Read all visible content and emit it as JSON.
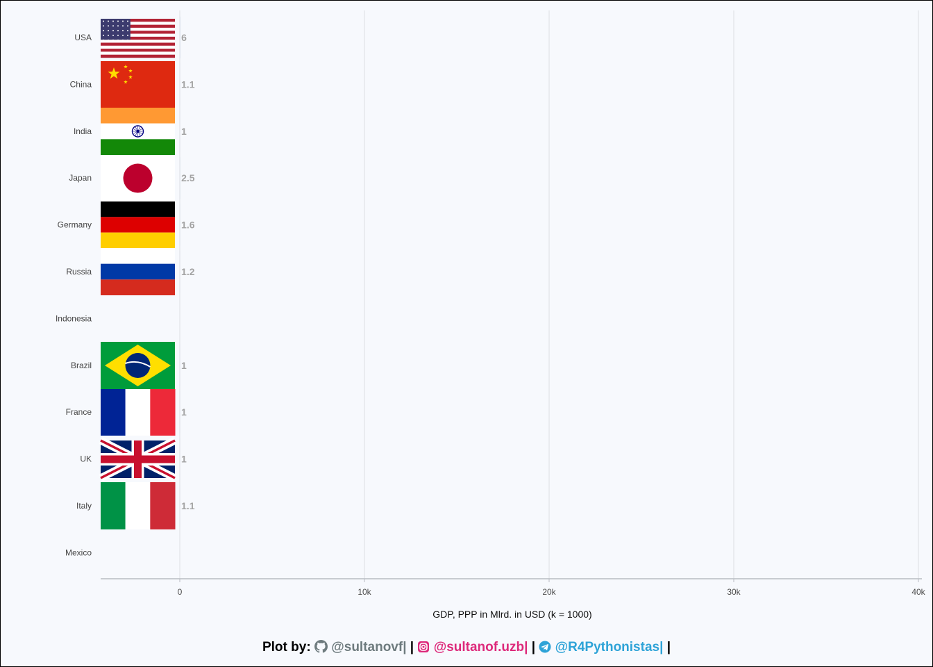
{
  "chart_data": {
    "type": "bar",
    "orientation": "horizontal",
    "categories": [
      "USA",
      "China",
      "India",
      "Japan",
      "Germany",
      "Russia",
      "Indonesia",
      "Brazil",
      "France",
      "UK",
      "Italy",
      "Mexico"
    ],
    "values": [
      6,
      1.1,
      1,
      2.5,
      1.6,
      1.2,
      null,
      1,
      1,
      1,
      1.1,
      null
    ],
    "value_labels": [
      "6",
      "1.1",
      "1",
      "2.5",
      "1.6",
      "1.2",
      "",
      "1",
      "1",
      "1",
      "1.1",
      ""
    ],
    "flags": [
      "usa-flag",
      "china-flag",
      "india-flag",
      "japan-flag",
      "germany-flag",
      "russia-flag",
      null,
      "brazil-flag",
      "france-flag",
      "uk-flag",
      "italy-flag",
      null
    ],
    "xlabel": "GDP, PPP in Mlrd. in USD (k = 1000)",
    "xlim": [
      0,
      40000
    ],
    "xticks": [
      0,
      10000,
      20000,
      30000,
      40000
    ],
    "xtick_labels": [
      "0",
      "10k",
      "20k",
      "30k",
      "40k"
    ],
    "grid": true,
    "bar_color": "#91b2d6"
  },
  "caption": {
    "prefix": "Plot by:",
    "github": "@sultanovf|",
    "instagram": "@sultanof.uzb|",
    "telegram": "@R4Pythonistas|",
    "separator": "|",
    "github_icon": "github-icon",
    "instagram_icon": "instagram-icon",
    "telegram_icon": "telegram-icon"
  }
}
